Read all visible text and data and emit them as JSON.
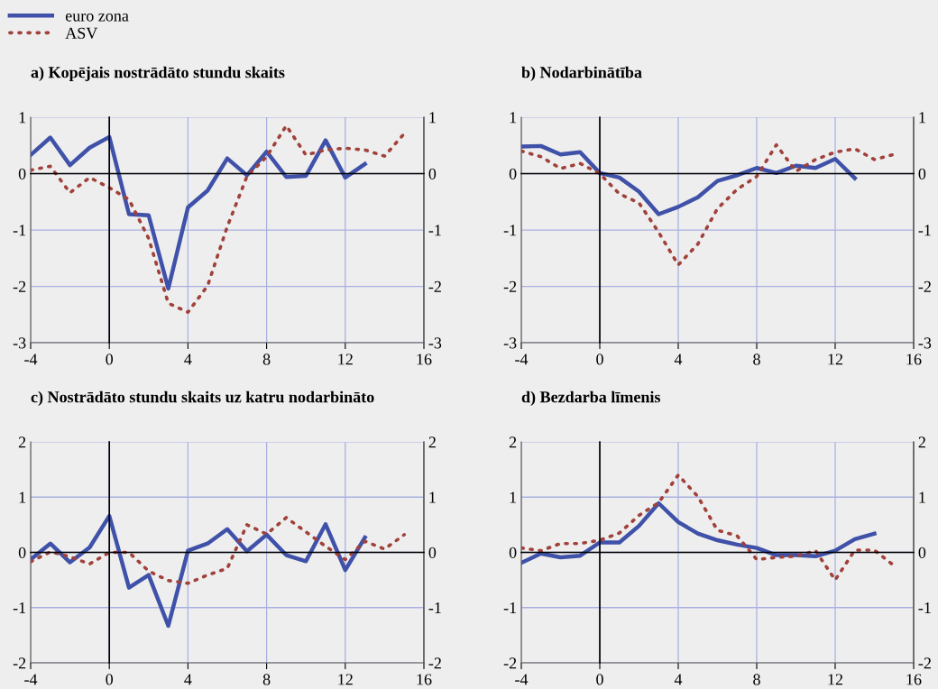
{
  "chart_data": [
    {
      "type": "line",
      "title": "a) Kopējais nostrādāto stundu skaits",
      "legend": "top left",
      "grid": true,
      "xlim": [
        -4,
        16
      ],
      "xticks": [
        -4,
        0,
        4,
        8,
        12,
        16
      ],
      "ylim": [
        -3,
        1
      ],
      "yticks": [
        -3,
        -2,
        -1,
        0,
        1
      ],
      "y2lim": [
        -3,
        1
      ],
      "y2ticks": [
        -3,
        -2,
        -1,
        0,
        1
      ],
      "series": [
        {
          "name": "euro zona",
          "color": "#3f51a8",
          "line_style": "solid",
          "x": [
            -4,
            -3,
            -2,
            -1,
            0,
            1,
            2,
            3,
            4,
            5,
            6,
            7,
            8,
            9,
            10,
            11,
            12,
            13
          ],
          "values": [
            0.33,
            0.64,
            0.15,
            0.46,
            0.65,
            -0.72,
            -0.74,
            -2.04,
            -0.6,
            -0.3,
            0.27,
            -0.03,
            0.39,
            -0.06,
            -0.04,
            0.59,
            -0.07,
            0.17
          ]
        },
        {
          "name": "ASV",
          "color": "#a0413a",
          "line_style": "dotted",
          "x": [
            -4,
            -3,
            -2,
            -1,
            0,
            1,
            2,
            3,
            4,
            5,
            6,
            7,
            8,
            9,
            10,
            11,
            12,
            13,
            14,
            15
          ],
          "values": [
            0.06,
            0.13,
            -0.34,
            -0.07,
            -0.25,
            -0.46,
            -1.15,
            -2.3,
            -2.46,
            -1.99,
            -0.94,
            -0.05,
            0.3,
            0.85,
            0.33,
            0.42,
            0.45,
            0.42,
            0.31,
            0.71
          ]
        }
      ]
    },
    {
      "type": "line",
      "title": "b) Nodarbinātība",
      "grid": true,
      "xlim": [
        -4,
        16
      ],
      "xticks": [
        -4,
        0,
        4,
        8,
        12,
        16
      ],
      "ylim": [
        -3,
        1
      ],
      "yticks": [
        -3,
        -2,
        -1,
        0,
        1
      ],
      "y2lim": [
        -3,
        1
      ],
      "y2ticks": [
        -3,
        -2,
        -1,
        0,
        1
      ],
      "series": [
        {
          "color": "#3f51a8",
          "line_style": "solid",
          "x": [
            -4,
            -3,
            -2,
            -1,
            0,
            1,
            2,
            3,
            4,
            5,
            6,
            7,
            8,
            9,
            10,
            11,
            12,
            13
          ],
          "values": [
            0.48,
            0.49,
            0.34,
            0.38,
            0.01,
            -0.07,
            -0.32,
            -0.72,
            -0.59,
            -0.42,
            -0.13,
            -0.03,
            0.1,
            0.01,
            0.14,
            0.1,
            0.26,
            -0.08
          ]
        },
        {
          "color": "#a0413a",
          "line_style": "dotted",
          "x": [
            -4,
            -3,
            -2,
            -1,
            0,
            1,
            2,
            3,
            4,
            5,
            6,
            7,
            8,
            9,
            10,
            11,
            12,
            13,
            14,
            15
          ],
          "values": [
            0.4,
            0.3,
            0.09,
            0.18,
            0,
            -0.36,
            -0.52,
            -1.04,
            -1.62,
            -1.25,
            -0.62,
            -0.28,
            -0.05,
            0.51,
            0.04,
            0.25,
            0.38,
            0.44,
            0.25,
            0.34
          ]
        }
      ]
    },
    {
      "type": "line",
      "title": "c) Nostrādāto stundu skaits uz katru nodarbināto",
      "grid": true,
      "xlim": [
        -4,
        16
      ],
      "xticks": [
        -4,
        0,
        4,
        8,
        12,
        16
      ],
      "ylim": [
        -2,
        2
      ],
      "yticks": [
        -2,
        -1,
        0,
        1,
        2
      ],
      "y2lim": [
        -2,
        2
      ],
      "y2ticks": [
        -2,
        -1,
        0,
        1,
        2
      ],
      "series": [
        {
          "color": "#3f51a8",
          "line_style": "solid",
          "x": [
            -4,
            -3,
            -2,
            -1,
            0,
            1,
            2,
            3,
            4,
            5,
            6,
            7,
            8,
            9,
            10,
            11,
            12,
            13
          ],
          "values": [
            -0.13,
            0.16,
            -0.18,
            0.09,
            0.66,
            -0.64,
            -0.41,
            -1.33,
            0.03,
            0.16,
            0.42,
            0.02,
            0.32,
            -0.05,
            -0.16,
            0.51,
            -0.32,
            0.27
          ]
        },
        {
          "color": "#a0413a",
          "line_style": "dotted",
          "x": [
            -4,
            -3,
            -2,
            -1,
            0,
            1,
            2,
            3,
            4,
            5,
            6,
            7,
            8,
            9,
            10,
            11,
            12,
            13,
            14,
            15
          ],
          "values": [
            -0.17,
            0.01,
            -0.08,
            -0.21,
            0,
            0,
            -0.34,
            -0.51,
            -0.56,
            -0.41,
            -0.29,
            0.5,
            0.33,
            0.63,
            0.37,
            0.11,
            -0.13,
            0.2,
            0.06,
            0.32
          ]
        }
      ]
    },
    {
      "type": "line",
      "title": "d) Bezdarba līmenis",
      "grid": true,
      "xlim": [
        -4,
        16
      ],
      "xticks": [
        -4,
        0,
        4,
        8,
        12,
        16
      ],
      "ylim": [
        -2,
        2
      ],
      "yticks": [
        -2,
        -1,
        0,
        1,
        2
      ],
      "y2lim": [
        -2,
        2
      ],
      "y2ticks": [
        -2,
        -1,
        0,
        1,
        2
      ],
      "series": [
        {
          "color": "#3f51a8",
          "line_style": "solid",
          "x": [
            -4,
            -3,
            -2,
            -1,
            0,
            1,
            2,
            3,
            4,
            5,
            6,
            7,
            8,
            9,
            10,
            11,
            12,
            13,
            14
          ],
          "values": [
            -0.19,
            -0.02,
            -0.09,
            -0.06,
            0.18,
            0.18,
            0.48,
            0.89,
            0.55,
            0.34,
            0.22,
            0.14,
            0.08,
            -0.05,
            -0.05,
            -0.07,
            0.03,
            0.24,
            0.34
          ]
        },
        {
          "color": "#a0413a",
          "line_style": "dotted",
          "x": [
            -4,
            -3,
            -2,
            -1,
            0,
            1,
            2,
            3,
            4,
            5,
            6,
            7,
            8,
            9,
            10,
            11,
            12,
            13,
            14,
            15
          ],
          "values": [
            0.08,
            0.03,
            0.16,
            0.16,
            0.22,
            0.35,
            0.67,
            0.9,
            1.4,
            1.01,
            0.4,
            0.3,
            -0.13,
            -0.09,
            -0.07,
            0.03,
            -0.5,
            0.04,
            0.04,
            -0.24
          ]
        }
      ]
    }
  ]
}
